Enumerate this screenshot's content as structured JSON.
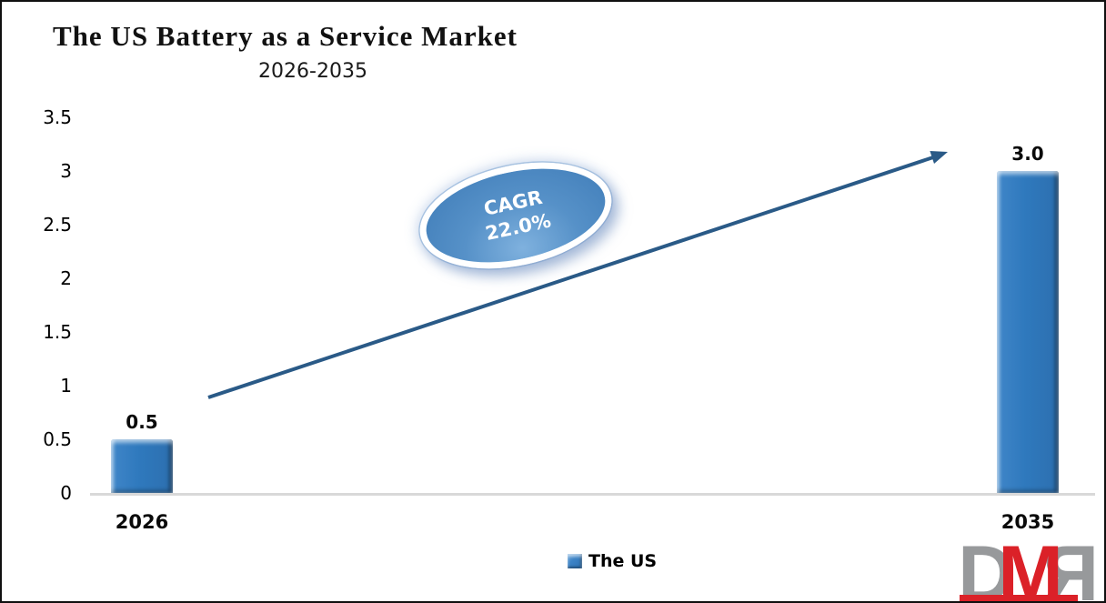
{
  "chart_data": {
    "type": "bar",
    "title": "The US Battery as a Service Market",
    "subtitle": "2026-2035",
    "categories": [
      "2026",
      "2035"
    ],
    "values": [
      0.5,
      3.0
    ],
    "data_labels": [
      "0.5",
      "3.0"
    ],
    "series": [
      {
        "name": "The US",
        "values": [
          0.5,
          3.0
        ]
      }
    ],
    "xlabel": "",
    "ylabel": "",
    "ylim": [
      0,
      3.5
    ],
    "ytick_interval": 0.5,
    "yticks": [
      "3.5",
      "3",
      "2.5",
      "2",
      "1.5",
      "1",
      "0.5",
      "0"
    ],
    "grid": false,
    "legend_position": "bottom",
    "annotation": {
      "line1": "CAGR",
      "line2": "22.0%",
      "cagr_pct": 22.0
    }
  },
  "legend": {
    "label": "The US"
  },
  "watermark": {
    "letters": [
      "D",
      "M",
      "R"
    ]
  },
  "colors": {
    "bar_color": "#2F79BD",
    "arrow_color": "#2A5A87",
    "badge_fill": "#3F7CB8",
    "axis_line": "#D9D9D9",
    "logo_gray": "#97999B",
    "logo_red": "#DB2128"
  }
}
